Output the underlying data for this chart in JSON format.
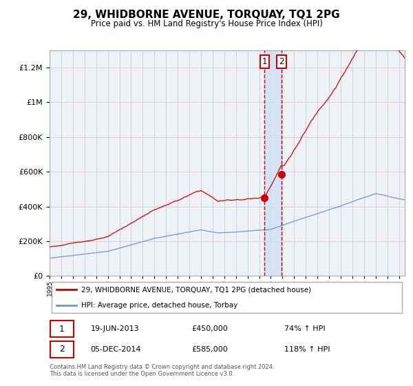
{
  "title": "29, WHIDBORNE AVENUE, TORQUAY, TQ1 2PG",
  "subtitle": "Price paid vs. HM Land Registry's House Price Index (HPI)",
  "legend_label_red": "29, WHIDBORNE AVENUE, TORQUAY, TQ1 2PG (detached house)",
  "legend_label_blue": "HPI: Average price, detached house, Torbay",
  "footer": "Contains HM Land Registry data © Crown copyright and database right 2024.\nThis data is licensed under the Open Government Licence v3.0.",
  "annotation1_date": "19-JUN-2013",
  "annotation1_price": "£450,000",
  "annotation1_hpi": "74% ↑ HPI",
  "annotation2_date": "05-DEC-2014",
  "annotation2_price": "£585,000",
  "annotation2_hpi": "118% ↑ HPI",
  "sale1_year": 2013.47,
  "sale1_price": 450000,
  "sale2_year": 2014.92,
  "sale2_price": 585000,
  "red_color": "#cc0000",
  "blue_color": "#6699cc",
  "grid_color": "#cccccc",
  "shade_color": "#cce0f5",
  "ylim": [
    0,
    1300000
  ],
  "xlim_start": 1995.0,
  "xlim_end": 2025.5
}
